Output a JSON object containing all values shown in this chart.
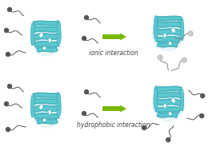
{
  "background_color": "#ffffff",
  "arrow_color": "#7ab800",
  "label_color": "#444444",
  "protein_fill": "#5ec8d2",
  "protein_edge": "#3aabb5",
  "protein_fill2": "#72d4dc",
  "white_fill": "#ffffff",
  "dark_head": "#555555",
  "light_head": "#cccccc",
  "light_head_edge": "#999999",
  "ionic_label": "ionic interaction",
  "hydrophobic_label": "hydrophobic interaction",
  "label_fontsize": 5.5,
  "fig_width": 2.66,
  "fig_height": 1.89,
  "dpi": 100
}
